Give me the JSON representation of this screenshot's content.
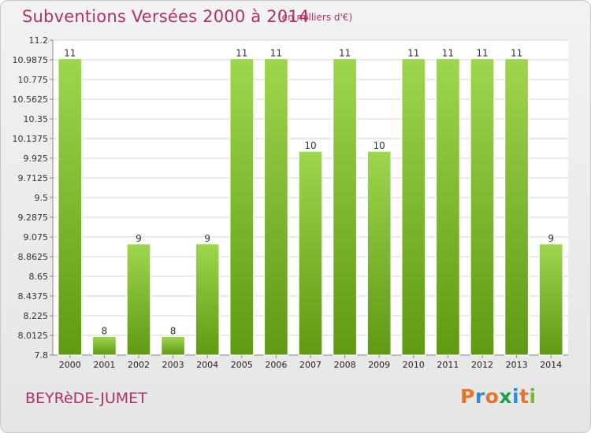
{
  "header": {
    "title": "Subventions Versées 2000 à 2014",
    "subtitle": "(en milliers d'€)"
  },
  "footer": {
    "place": "BEYRèDE-JUMET",
    "logo": "Proxiti"
  },
  "colors": {
    "title": "#b0306a",
    "bar_light": "#9ed64e",
    "bar_dark": "#5f9a12",
    "logo_letters": [
      "#e8742a",
      "#2b8fd6",
      "#e8742a",
      "#1fa04a",
      "#2b8fd6",
      "#e8742a",
      "#7ab82e"
    ]
  },
  "chart_data": {
    "type": "bar",
    "title": "Subventions Versées 2000 à 2014",
    "categories": [
      "2000",
      "2001",
      "2002",
      "2003",
      "2004",
      "2005",
      "2006",
      "2007",
      "2008",
      "2009",
      "2010",
      "2011",
      "2012",
      "2013",
      "2014"
    ],
    "values": [
      11,
      8,
      9,
      8,
      9,
      11,
      11,
      10,
      11,
      10,
      11,
      11,
      11,
      11,
      9
    ],
    "data_labels": [
      "11",
      "8",
      "9",
      "8",
      "9",
      "11",
      "11",
      "10",
      "11",
      "10",
      "11",
      "11",
      "11",
      "11",
      "9"
    ],
    "ylim": [
      7.8,
      11.2
    ],
    "y_ticks": [
      7.8,
      8.0125,
      8.225,
      8.4375,
      8.65,
      8.8625,
      9.075,
      9.2875,
      9.5,
      9.7125,
      9.925,
      10.1375,
      10.35,
      10.5625,
      10.775,
      10.9875,
      11.2
    ],
    "y_tick_labels": [
      "7.8",
      "8.0125",
      "8.225",
      "8.4375",
      "8.65",
      "8.8625",
      "9.075",
      "9.2875",
      "9.5",
      "9.7125",
      "9.925",
      "10.1375",
      "10.35",
      "10.5625",
      "10.775",
      "10.9875",
      "11.2"
    ],
    "grid": true,
    "legend": "none"
  }
}
